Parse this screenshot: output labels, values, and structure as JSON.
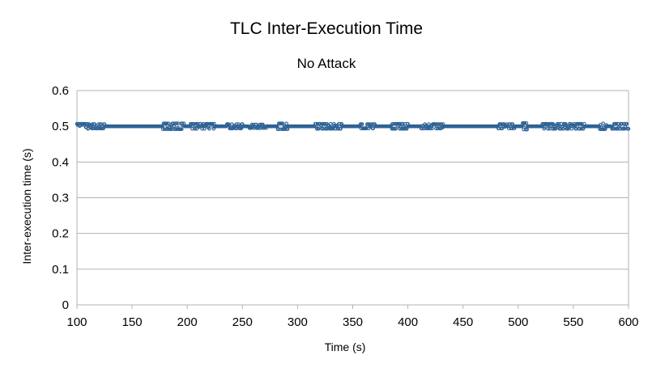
{
  "chart_data": {
    "type": "scatter",
    "title": "TLC Inter-Execution Time",
    "subtitle": "No Attack",
    "xlabel": "Time (s)",
    "ylabel": "Inter-execution time (s)",
    "xlim": [
      100,
      600
    ],
    "ylim": [
      0,
      0.6
    ],
    "x_ticks": [
      "100",
      "150",
      "200",
      "250",
      "300",
      "350",
      "400",
      "450",
      "500",
      "550",
      "600"
    ],
    "y_ticks": [
      "0",
      "0.1",
      "0.2",
      "0.3",
      "0.4",
      "0.5",
      "0.6"
    ],
    "grid": true,
    "legend": "none",
    "marker_color": "#2f6396",
    "series": [
      {
        "sampling_interval_s": 0.5,
        "baseline_value": 0.5,
        "x_range": [
          100,
          600
        ],
        "deviations": [
          {
            "x_range": [
              100,
              110
            ],
            "y": [
              0.493,
              0.507
            ]
          },
          {
            "x_range": [
              110,
              125
            ],
            "y": [
              0.494,
              0.506
            ]
          },
          {
            "x_range": [
              178,
              197
            ],
            "y": [
              0.492,
              0.508
            ]
          },
          {
            "x_range": [
              203,
              225
            ],
            "y": [
              0.493,
              0.507
            ]
          },
          {
            "x_range": [
              236,
              250
            ],
            "y": [
              0.494,
              0.506
            ]
          },
          {
            "x_range": [
              256,
              272
            ],
            "y": [
              0.495,
              0.505
            ]
          },
          {
            "x_range": [
              282,
              291
            ],
            "y": [
              0.492,
              0.508
            ]
          },
          {
            "x_range": [
              316,
              340
            ],
            "y": [
              0.493,
              0.507
            ]
          },
          {
            "x_range": [
              357,
              370
            ],
            "y": [
              0.494,
              0.506
            ]
          },
          {
            "x_range": [
              385,
              400
            ],
            "y": [
              0.493,
              0.507
            ]
          },
          {
            "x_range": [
              412,
              432
            ],
            "y": [
              0.494,
              0.506
            ]
          },
          {
            "x_range": [
              482,
              497
            ],
            "y": [
              0.494,
              0.506
            ]
          },
          {
            "x_range": [
              504,
              508
            ],
            "y": [
              0.491,
              0.509
            ]
          },
          {
            "x_range": [
              522,
              560
            ],
            "y": [
              0.493,
              0.507
            ]
          },
          {
            "x_range": [
              574,
              580
            ],
            "y": [
              0.492,
              0.508
            ]
          },
          {
            "x_range": [
              585,
              600
            ],
            "y": [
              0.493,
              0.507
            ]
          }
        ]
      }
    ]
  }
}
